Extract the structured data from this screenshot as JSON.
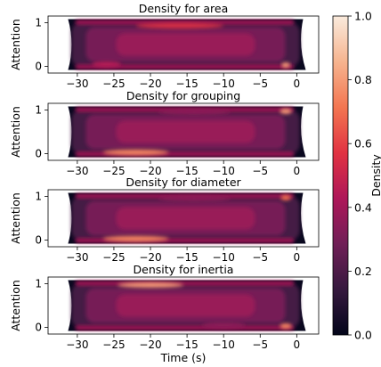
{
  "chart_data": [
    {
      "type": "heatmap",
      "title": "Density for area",
      "xlabel": "",
      "ylabel": "Attention",
      "xlim": [
        -34,
        3
      ],
      "ylim": [
        -0.15,
        1.15
      ],
      "xticks": [
        "−30",
        "−25",
        "−20",
        "−15",
        "−10",
        "−5",
        "0"
      ],
      "xtick_values": [
        -30,
        -25,
        -20,
        -15,
        -10,
        -5,
        0
      ],
      "yticks": [
        "0",
        "1"
      ],
      "ytick_values": [
        0,
        1
      ],
      "hot_spots": [
        {
          "x": -16,
          "y": 0.93,
          "w": 12,
          "h": 0.07,
          "level": 0.55
        },
        {
          "x": -26,
          "y": 0.05,
          "w": 4,
          "h": 0.07,
          "level": 0.45
        },
        {
          "x": -1.5,
          "y": 0.03,
          "w": 1.2,
          "h": 0.06,
          "level": 0.8
        }
      ]
    },
    {
      "type": "heatmap",
      "title": "Density for grouping",
      "xlabel": "",
      "ylabel": "Attention",
      "xlim": [
        -34,
        3
      ],
      "ylim": [
        -0.15,
        1.15
      ],
      "xticks": [
        "−30",
        "−25",
        "−20",
        "−15",
        "−10",
        "−5",
        "0"
      ],
      "xtick_values": [
        -30,
        -25,
        -20,
        -15,
        -10,
        -5,
        0
      ],
      "yticks": [
        "0",
        "1"
      ],
      "ytick_values": [
        0,
        1
      ],
      "hot_spots": [
        {
          "x": -22,
          "y": 0.03,
          "w": 9,
          "h": 0.07,
          "level": 0.75
        },
        {
          "x": -1.5,
          "y": 0.97,
          "w": 1.6,
          "h": 0.06,
          "level": 0.8
        },
        {
          "x": -14,
          "y": 0.95,
          "w": 10,
          "h": 0.06,
          "level": 0.35
        }
      ]
    },
    {
      "type": "heatmap",
      "title": "Density for diameter",
      "xlabel": "",
      "ylabel": "Attention",
      "xlim": [
        -34,
        3
      ],
      "ylim": [
        -0.15,
        1.15
      ],
      "xticks": [
        "−30",
        "−25",
        "−20",
        "−15",
        "−10",
        "−5",
        "0"
      ],
      "xtick_values": [
        -30,
        -25,
        -20,
        -15,
        -10,
        -5,
        0
      ],
      "yticks": [
        "0",
        "1"
      ],
      "ytick_values": [
        0,
        1
      ],
      "hot_spots": [
        {
          "x": -22,
          "y": 0.03,
          "w": 9,
          "h": 0.07,
          "level": 0.75
        },
        {
          "x": -1.5,
          "y": 0.97,
          "w": 1.4,
          "h": 0.06,
          "level": 0.7
        },
        {
          "x": -14,
          "y": 0.95,
          "w": 10,
          "h": 0.06,
          "level": 0.35
        }
      ]
    },
    {
      "type": "heatmap",
      "title": "Density for inertia",
      "xlabel": "Time (s)",
      "ylabel": "Attention",
      "xlim": [
        -34,
        3
      ],
      "ylim": [
        -0.15,
        1.15
      ],
      "xticks": [
        "−30",
        "−25",
        "−20",
        "−15",
        "−10",
        "−5",
        "0"
      ],
      "xtick_values": [
        -30,
        -25,
        -20,
        -15,
        -10,
        -5,
        0
      ],
      "yticks": [
        "0",
        "1"
      ],
      "ytick_values": [
        0,
        1
      ],
      "hot_spots": [
        {
          "x": -20,
          "y": 0.97,
          "w": 9,
          "h": 0.06,
          "level": 0.8
        },
        {
          "x": -1.5,
          "y": 0.03,
          "w": 1.6,
          "h": 0.06,
          "level": 0.75
        },
        {
          "x": -10,
          "y": 0.05,
          "w": 6,
          "h": 0.07,
          "level": 0.35
        }
      ]
    }
  ],
  "colorbar": {
    "label": "Density",
    "range": [
      0.0,
      1.0
    ],
    "ticks": [
      "0.0",
      "0.2",
      "0.4",
      "0.6",
      "0.8",
      "1.0"
    ],
    "tick_values": [
      0.0,
      0.2,
      0.4,
      0.6,
      0.8,
      1.0
    ],
    "colormap": [
      "#03051a",
      "#36193e",
      "#701f57",
      "#ae1759",
      "#e13342",
      "#f37651",
      "#f6b48f",
      "#faebdd"
    ]
  }
}
